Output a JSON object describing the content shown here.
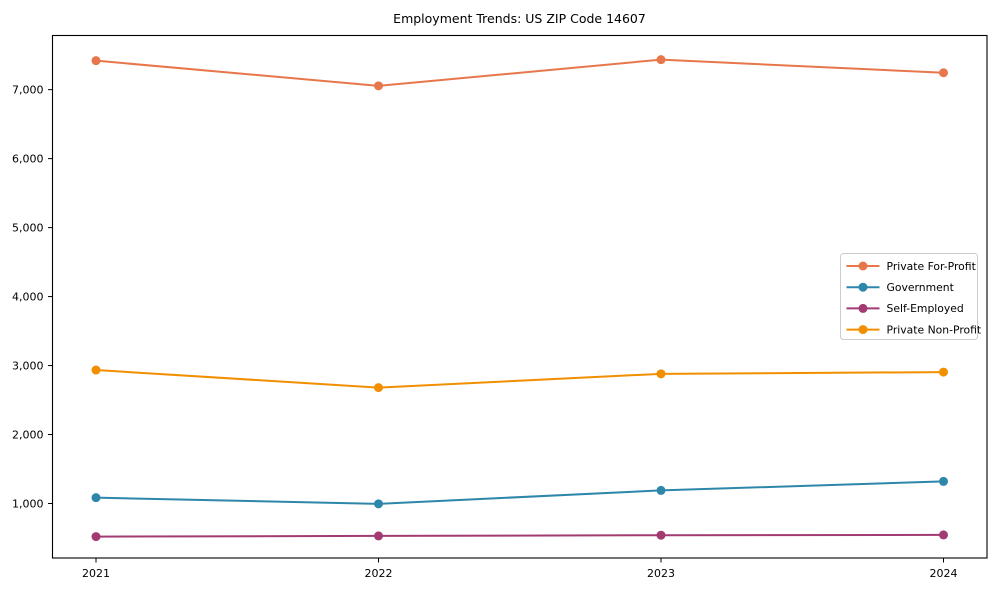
{
  "chart": {
    "title": "Employment Trends: US ZIP Code 14607",
    "background_color": "#ffffff",
    "spine_color": "#000000",
    "tick_label_color": "#000000",
    "legend_border_color": "#cccccc",
    "legend_background": "#ffffff"
  },
  "chart_data": {
    "type": "line",
    "title": "Employment Trends: US ZIP Code 14607",
    "xlabel": "",
    "ylabel": "",
    "x": [
      2021,
      2022,
      2023,
      2024
    ],
    "x_tick_labels": [
      "2021",
      "2022",
      "2023",
      "2024"
    ],
    "series": [
      {
        "name": "Private For-Profit",
        "color": "#E8764B",
        "values": [
          7420,
          7055,
          7435,
          7245
        ]
      },
      {
        "name": "Government",
        "color": "#2E86AB",
        "values": [
          1085,
          995,
          1190,
          1320
        ]
      },
      {
        "name": "Self-Employed",
        "color": "#A23B72",
        "values": [
          520,
          530,
          540,
          545
        ]
      },
      {
        "name": "Private Non-Profit",
        "color": "#F18F01",
        "values": [
          2935,
          2680,
          2880,
          2905
        ]
      }
    ],
    "yticks": [
      1000,
      2000,
      3000,
      4000,
      5000,
      6000,
      7000
    ],
    "ytick_labels": [
      "1,000",
      "2,000",
      "3,000",
      "4,000",
      "5,000",
      "6,000",
      "7,000"
    ],
    "xlim": [
      2020.846,
      2024.154
    ],
    "ylim": [
      210,
      7785
    ],
    "grid": false,
    "marker": "circle",
    "marker_radius": 4.5,
    "line_width": 2,
    "legend_position": "right-center",
    "legend_items": [
      "Private For-Profit",
      "Government",
      "Self-Employed",
      "Private Non-Profit"
    ]
  }
}
